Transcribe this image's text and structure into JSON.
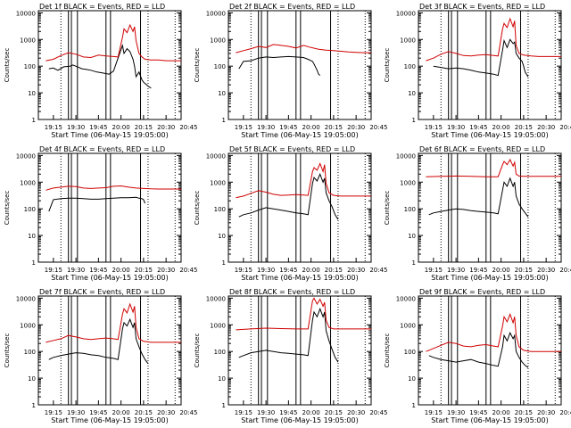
{
  "figure": {
    "y_label": "Counts/sec",
    "x_ticks": [
      "19:15",
      "19:30",
      "19:45",
      "20:00",
      "20:15",
      "20:30",
      "20:45"
    ],
    "x_label": "Start Time (06-May-15 19:05:00)",
    "y_ticks": [
      "1",
      "10",
      "100",
      "1000",
      "10000"
    ]
  },
  "colors": {
    "events": "#000000",
    "lld": "#d00000"
  },
  "chart_data": [
    {
      "type": "line",
      "title": "Det 1f BLACK = Events, RED = LLD",
      "ylog": true,
      "ylim": [
        1,
        12000
      ],
      "xlim": [
        5,
        100
      ],
      "series": [
        {
          "color": "black",
          "x": [
            12,
            15,
            18,
            22,
            26,
            28,
            31,
            34,
            37,
            40,
            44,
            48,
            52,
            55,
            58,
            61,
            62,
            64,
            66,
            68,
            69,
            70,
            72,
            74,
            75,
            77,
            78,
            80
          ],
          "y": [
            80,
            85,
            70,
            95,
            100,
            110,
            95,
            80,
            75,
            70,
            60,
            55,
            50,
            65,
            200,
            600,
            300,
            450,
            350,
            180,
            100,
            40,
            60,
            30,
            25,
            20,
            18,
            15
          ]
        },
        {
          "color": "red",
          "x": [
            10,
            15,
            20,
            25,
            30,
            35,
            40,
            45,
            50,
            55,
            58,
            61,
            62,
            64,
            66,
            68,
            69,
            70,
            72,
            74,
            76,
            80,
            85,
            90,
            95,
            100
          ],
          "y": [
            160,
            180,
            250,
            320,
            280,
            220,
            210,
            260,
            240,
            230,
            220,
            1200,
            2500,
            1800,
            3500,
            2000,
            3000,
            900,
            300,
            220,
            180,
            170,
            170,
            160,
            160,
            160
          ]
        }
      ]
    },
    {
      "type": "line",
      "title": "Det 2f BLACK = Events, RED = LLD",
      "ylog": true,
      "ylim": [
        1,
        12000
      ],
      "xlim": [
        5,
        100
      ],
      "series": [
        {
          "color": "black",
          "x": [
            12,
            15,
            20,
            25,
            30,
            35,
            40,
            45,
            50,
            55,
            58,
            60,
            61,
            62,
            64,
            65,
            66
          ],
          "y": [
            80,
            150,
            160,
            200,
            220,
            210,
            220,
            230,
            220,
            210,
            180,
            160,
            150,
            120,
            70,
            50,
            45
          ]
        },
        {
          "color": "red",
          "x": [
            10,
            15,
            20,
            25,
            30,
            35,
            40,
            45,
            50,
            55,
            60,
            65,
            70,
            75,
            80,
            85,
            90,
            95,
            100
          ],
          "y": [
            320,
            380,
            450,
            550,
            500,
            650,
            600,
            550,
            480,
            600,
            500,
            430,
            400,
            380,
            360,
            340,
            330,
            320,
            320
          ]
        }
      ]
    },
    {
      "type": "line",
      "title": "Det 3f BLACK = Events, RED = LLD",
      "ylog": true,
      "ylim": [
        1,
        12000
      ],
      "xlim": [
        5,
        100
      ],
      "series": [
        {
          "color": "black",
          "x": [
            15,
            20,
            25,
            30,
            35,
            40,
            45,
            50,
            55,
            58,
            61,
            62,
            64,
            66,
            68,
            69,
            70,
            72,
            74,
            75,
            76,
            78
          ],
          "y": [
            100,
            90,
            80,
            85,
            80,
            70,
            60,
            55,
            50,
            45,
            400,
            900,
            500,
            1000,
            700,
            800,
            300,
            200,
            150,
            100,
            60,
            40
          ]
        },
        {
          "color": "red",
          "x": [
            10,
            15,
            20,
            25,
            30,
            35,
            40,
            45,
            50,
            55,
            58,
            61,
            62,
            64,
            66,
            68,
            69,
            70,
            72,
            75,
            80,
            85,
            90,
            95,
            100
          ],
          "y": [
            160,
            200,
            280,
            350,
            300,
            250,
            240,
            260,
            270,
            250,
            240,
            2500,
            4000,
            2800,
            6000,
            3000,
            5000,
            600,
            300,
            260,
            240,
            230,
            230,
            230,
            230
          ]
        }
      ]
    },
    {
      "type": "line",
      "title": "Det 4f BLACK = Events, RED = LLD",
      "ylog": true,
      "ylim": [
        1,
        12000
      ],
      "xlim": [
        5,
        100
      ],
      "series": [
        {
          "color": "black",
          "x": [
            12,
            15,
            20,
            25,
            30,
            35,
            40,
            45,
            50,
            55,
            60,
            65,
            70,
            72,
            74,
            75,
            76
          ],
          "y": [
            80,
            220,
            240,
            250,
            250,
            240,
            230,
            230,
            240,
            250,
            260,
            260,
            270,
            250,
            240,
            220,
            160
          ]
        },
        {
          "color": "red",
          "x": [
            10,
            15,
            20,
            25,
            30,
            35,
            40,
            45,
            50,
            55,
            60,
            65,
            70,
            75,
            80,
            85,
            90,
            95,
            100
          ],
          "y": [
            500,
            600,
            650,
            700,
            680,
            600,
            580,
            600,
            620,
            700,
            720,
            650,
            600,
            580,
            560,
            550,
            550,
            550,
            550
          ]
        }
      ]
    },
    {
      "type": "line",
      "title": "Det 5f BLACK = Events, RED = LLD",
      "ylog": true,
      "ylim": [
        1,
        12000
      ],
      "xlim": [
        5,
        100
      ],
      "series": [
        {
          "color": "black",
          "x": [
            12,
            15,
            20,
            25,
            30,
            35,
            40,
            45,
            50,
            55,
            58,
            61,
            62,
            64,
            66,
            68,
            69,
            70,
            72,
            74,
            76,
            78
          ],
          "y": [
            50,
            60,
            70,
            90,
            110,
            100,
            90,
            80,
            70,
            65,
            60,
            900,
            1500,
            1100,
            2000,
            1000,
            1400,
            400,
            200,
            120,
            60,
            40
          ]
        },
        {
          "color": "red",
          "x": [
            10,
            15,
            20,
            25,
            30,
            35,
            40,
            45,
            50,
            55,
            58,
            61,
            62,
            64,
            66,
            68,
            69,
            70,
            72,
            75,
            80,
            85,
            90,
            95,
            100
          ],
          "y": [
            260,
            300,
            380,
            480,
            420,
            350,
            320,
            330,
            340,
            330,
            320,
            2500,
            3500,
            2800,
            5000,
            2500,
            4500,
            900,
            400,
            320,
            300,
            300,
            300,
            300,
            300
          ]
        }
      ]
    },
    {
      "type": "line",
      "title": "Det 6f BLACK = Events, RED = LLD",
      "ylog": true,
      "ylim": [
        1,
        12000
      ],
      "xlim": [
        5,
        100
      ],
      "series": [
        {
          "color": "black",
          "x": [
            12,
            15,
            20,
            25,
            30,
            35,
            40,
            45,
            50,
            55,
            58,
            61,
            62,
            64,
            66,
            68,
            69,
            70,
            72,
            74,
            76,
            78
          ],
          "y": [
            60,
            70,
            80,
            90,
            100,
            95,
            85,
            80,
            75,
            70,
            65,
            500,
            1000,
            700,
            1400,
            700,
            1000,
            300,
            150,
            100,
            70,
            50
          ]
        },
        {
          "color": "red",
          "x": [
            10,
            20,
            30,
            40,
            50,
            55,
            58,
            61,
            62,
            64,
            66,
            68,
            69,
            70,
            72,
            75,
            80,
            90,
            100
          ],
          "y": [
            1600,
            1650,
            1700,
            1650,
            1600,
            1600,
            1600,
            4500,
            6000,
            4500,
            7000,
            4000,
            5500,
            2000,
            1700,
            1650,
            1650,
            1650,
            1650
          ]
        }
      ]
    },
    {
      "type": "line",
      "title": "Det 7f BLACK = Events, RED = LLD",
      "ylog": true,
      "ylim": [
        1,
        12000
      ],
      "xlim": [
        5,
        100
      ],
      "series": [
        {
          "color": "black",
          "x": [
            12,
            15,
            20,
            25,
            30,
            35,
            40,
            45,
            50,
            55,
            58,
            61,
            62,
            64,
            66,
            68,
            69,
            70,
            72,
            74,
            76,
            78
          ],
          "y": [
            50,
            60,
            70,
            80,
            90,
            85,
            75,
            70,
            60,
            55,
            50,
            700,
            1200,
            900,
            1600,
            800,
            1200,
            300,
            150,
            80,
            50,
            35
          ]
        },
        {
          "color": "red",
          "x": [
            10,
            15,
            20,
            25,
            30,
            35,
            40,
            45,
            50,
            55,
            58,
            61,
            62,
            64,
            66,
            68,
            69,
            70,
            72,
            75,
            80,
            85,
            90,
            95,
            100
          ],
          "y": [
            220,
            260,
            300,
            400,
            350,
            300,
            280,
            300,
            320,
            300,
            280,
            2500,
            4000,
            2800,
            6000,
            3000,
            5000,
            800,
            300,
            240,
            220,
            220,
            220,
            220,
            220
          ]
        }
      ]
    },
    {
      "type": "line",
      "title": "Det 8f BLACK = Events, RED = LLD",
      "ylog": true,
      "ylim": [
        1,
        12000
      ],
      "xlim": [
        5,
        100
      ],
      "series": [
        {
          "color": "black",
          "x": [
            12,
            15,
            20,
            25,
            30,
            35,
            40,
            45,
            50,
            55,
            58,
            61,
            62,
            64,
            66,
            68,
            69,
            70,
            72,
            74,
            76,
            78
          ],
          "y": [
            60,
            70,
            90,
            100,
            110,
            100,
            90,
            85,
            80,
            75,
            70,
            1500,
            3000,
            2000,
            4000,
            2000,
            3000,
            600,
            250,
            120,
            60,
            40
          ]
        },
        {
          "color": "red",
          "x": [
            10,
            20,
            30,
            40,
            50,
            55,
            58,
            61,
            62,
            64,
            66,
            68,
            69,
            70,
            72,
            75,
            80,
            90,
            100
          ],
          "y": [
            650,
            700,
            750,
            720,
            700,
            700,
            700,
            8000,
            10000,
            6000,
            9000,
            5000,
            7000,
            1500,
            800,
            700,
            700,
            700,
            700
          ]
        }
      ]
    },
    {
      "type": "line",
      "title": "Det 9f BLACK = Events, RED = LLD",
      "ylog": true,
      "ylim": [
        1,
        12000
      ],
      "xlim": [
        5,
        100
      ],
      "series": [
        {
          "color": "black",
          "x": [
            12,
            15,
            20,
            25,
            30,
            35,
            40,
            45,
            50,
            55,
            58,
            61,
            62,
            64,
            66,
            68,
            69,
            70,
            72,
            74,
            76,
            78
          ],
          "y": [
            70,
            60,
            50,
            45,
            40,
            45,
            50,
            40,
            35,
            30,
            28,
            150,
            400,
            250,
            500,
            300,
            400,
            100,
            60,
            40,
            30,
            25
          ]
        },
        {
          "color": "red",
          "x": [
            10,
            15,
            20,
            25,
            30,
            35,
            40,
            45,
            50,
            55,
            58,
            61,
            62,
            64,
            66,
            68,
            69,
            70,
            72,
            75,
            80,
            85,
            90,
            95,
            100
          ],
          "y": [
            100,
            130,
            170,
            220,
            200,
            160,
            150,
            170,
            180,
            160,
            150,
            900,
            2000,
            1300,
            2500,
            1200,
            2000,
            400,
            150,
            110,
            100,
            100,
            100,
            100,
            100
          ]
        }
      ]
    }
  ]
}
